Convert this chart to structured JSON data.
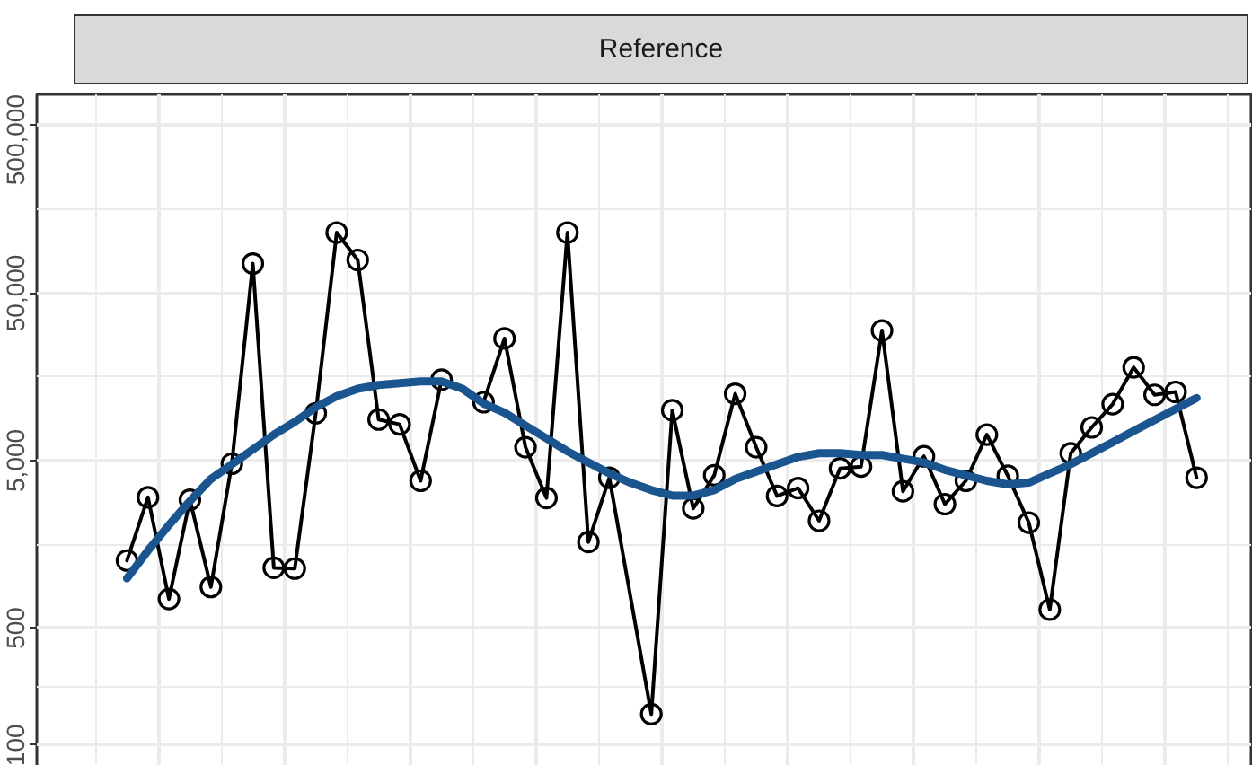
{
  "chart_data": {
    "type": "line",
    "title": "Reference",
    "categories": [
      null,
      null,
      null,
      null,
      null,
      null,
      null,
      null,
      null,
      null,
      null,
      null,
      null,
      null,
      null,
      null,
      null,
      null,
      null,
      null,
      null,
      null,
      null,
      null,
      null,
      null,
      null,
      null,
      null,
      null,
      null,
      null,
      null,
      null,
      null,
      null,
      null,
      null,
      null,
      null,
      null,
      null,
      null,
      null,
      null,
      null,
      null,
      null,
      null,
      null,
      null,
      null
    ],
    "series": [
      {
        "color": "#000000",
        "marker": "circle",
        "values": [
          1265,
          3015,
          745,
          2917,
          879,
          4786,
          75000,
          1143,
          1132,
          9580,
          115000,
          78900,
          8790,
          8230,
          3785,
          15200,
          null,
          11150,
          26800,
          6010,
          2990,
          115000,
          1630,
          3950,
          null,
          153,
          9980,
          2590,
          4080,
          12530,
          6010,
          3070,
          3420,
          2185,
          4490,
          4600,
          29900,
          3275,
          5300,
          2745,
          3785,
          7130,
          4055,
          2130,
          644,
          5530,
          7890,
          10870,
          18000,
          12340,
          12850,
          3950
        ]
      },
      {
        "color": "#1a5590",
        "marker": "none",
        "values": [
          990,
          1450,
          2060,
          2865,
          3880,
          4750,
          5820,
          7130,
          8510,
          10400,
          12130,
          13420,
          14130,
          14490,
          14850,
          14850,
          13420,
          10960,
          9660,
          8090,
          6780,
          5680,
          4880,
          4190,
          3690,
          3330,
          3090,
          3090,
          3330,
          3880,
          4300,
          4750,
          5260,
          5530,
          5530,
          5400,
          5400,
          5130,
          4880,
          4400,
          4080,
          3785,
          3600,
          3690,
          4190,
          4750,
          5530,
          6440,
          7500,
          8730,
          10160,
          11830
        ]
      }
    ],
    "log": "y",
    "ylim": [
      68,
      770000
    ],
    "yticks": [
      100,
      500,
      {
        "value": 5000,
        "label": "5,000"
      },
      {
        "value": 50000,
        "label": "50,000"
      },
      {
        "value": 500000,
        "label": "500,000"
      }
    ],
    "grid": true
  }
}
